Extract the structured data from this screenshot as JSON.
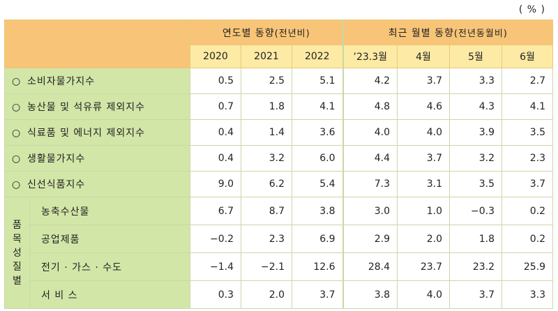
{
  "unit": "( % )",
  "header": {
    "yearly_group": "연도별 동향",
    "yearly_paren": "(전년비)",
    "monthly_group": "최근 월별 동향",
    "monthly_paren": "(전년동월비)",
    "columns": [
      "2020",
      "2021",
      "2022",
      "’23.3월",
      "4월",
      "5월",
      "6월"
    ]
  },
  "rows": [
    {
      "bullet": "○",
      "label": "소비자물가지수",
      "values": [
        "0.5",
        "2.5",
        "5.1",
        "4.2",
        "3.7",
        "3.3",
        "2.7"
      ]
    },
    {
      "bullet": "○",
      "label": "농산물 및 석유류 제외지수",
      "values": [
        "0.7",
        "1.8",
        "4.1",
        "4.8",
        "4.6",
        "4.3",
        "4.1"
      ]
    },
    {
      "bullet": "○",
      "label": "식료품 및 에너지 제외지수",
      "values": [
        "0.4",
        "1.4",
        "3.6",
        "4.0",
        "4.0",
        "3.9",
        "3.5"
      ]
    },
    {
      "bullet": "○",
      "label": "생활물가지수",
      "values": [
        "0.4",
        "3.2",
        "6.0",
        "4.4",
        "3.7",
        "3.2",
        "2.3"
      ]
    },
    {
      "bullet": "○",
      "label": "신선식품지수",
      "values": [
        "9.0",
        "6.2",
        "5.4",
        "7.3",
        "3.1",
        "3.5",
        "3.7"
      ]
    }
  ],
  "group": {
    "side_chars": [
      "품",
      "목",
      "성",
      "질",
      "별"
    ],
    "rows": [
      {
        "label": "농축수산물",
        "values": [
          "6.7",
          "8.7",
          "3.8",
          "3.0",
          "1.0",
          "−0.3",
          "0.2"
        ]
      },
      {
        "label": "공업제품",
        "values": [
          "−0.2",
          "2.3",
          "6.9",
          "2.9",
          "2.0",
          "1.8",
          "0.2"
        ]
      },
      {
        "label": "전기 · 가스 · 수도",
        "values": [
          "−1.4",
          "−2.1",
          "12.6",
          "28.4",
          "23.7",
          "23.2",
          "25.9"
        ]
      },
      {
        "label": "서 비 스",
        "values": [
          "0.3",
          "2.0",
          "3.7",
          "3.8",
          "4.0",
          "3.7",
          "3.3"
        ]
      }
    ]
  }
}
